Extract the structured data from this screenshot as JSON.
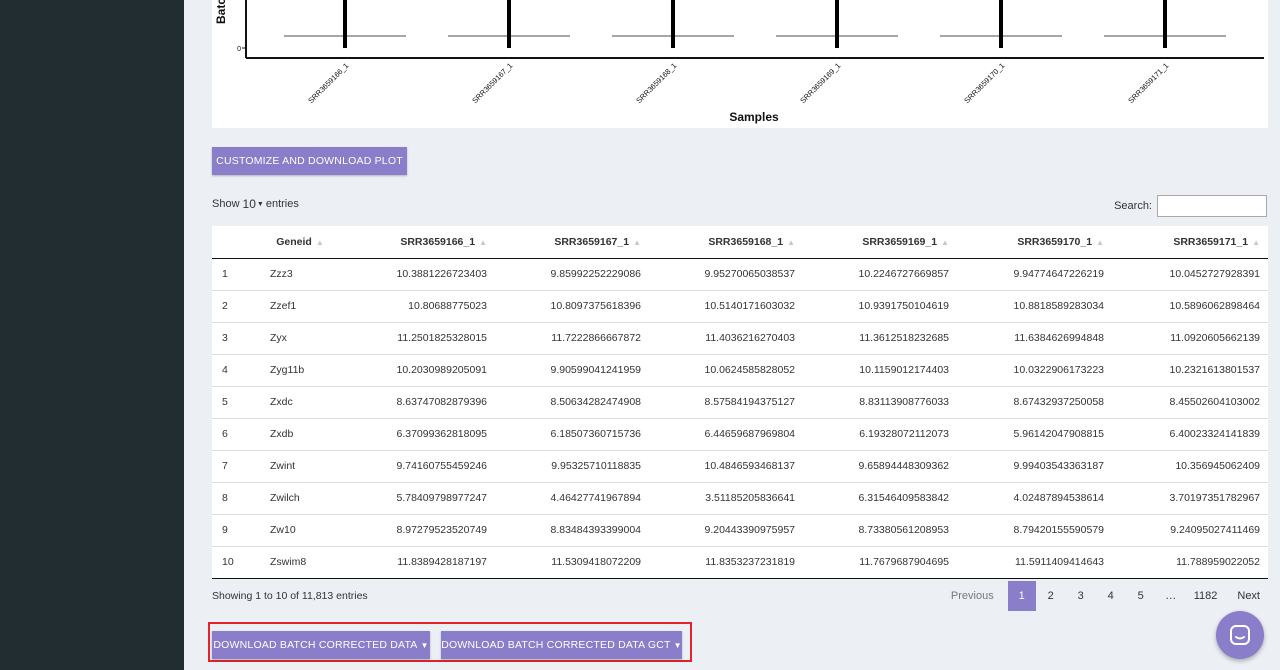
{
  "chart_data": {
    "type": "bar",
    "ylabel": "Batc",
    "xlabel": "Samples",
    "y_ticks": [
      "0"
    ],
    "categories": [
      "SRR3659166_1",
      "SRR3659167_1",
      "SRR3659168_1",
      "SRR3659169_1",
      "SRR3659170_1",
      "SRR3659171_1"
    ]
  },
  "customize_button": "CUSTOMIZE AND DOWNLOAD PLOT",
  "length_menu": {
    "show_label": "Show",
    "selected": "10",
    "entries_label": "entries"
  },
  "search": {
    "label": "Search:",
    "value": ""
  },
  "table": {
    "columns": [
      "",
      "Geneid",
      "SRR3659166_1",
      "SRR3659167_1",
      "SRR3659168_1",
      "SRR3659169_1",
      "SRR3659170_1",
      "SRR3659171_1"
    ],
    "rows": [
      [
        "1",
        "Zzz3",
        "10.3881226723403",
        "9.85992252229086",
        "9.95270065038537",
        "10.2246727669857",
        "9.94774647226219",
        "10.0452727928391"
      ],
      [
        "2",
        "Zzef1",
        "10.80688775023",
        "10.8097375618396",
        "10.5140171603032",
        "10.9391750104619",
        "10.8818589283034",
        "10.5896062898464"
      ],
      [
        "3",
        "Zyx",
        "11.2501825328015",
        "11.7222866667872",
        "11.4036216270403",
        "11.3612518232685",
        "11.6384626994848",
        "11.0920605662139"
      ],
      [
        "4",
        "Zyg11b",
        "10.2030989205091",
        "9.90599041241959",
        "10.0624585828052",
        "10.1159012174403",
        "10.0322906173223",
        "10.2321613801537"
      ],
      [
        "5",
        "Zxdc",
        "8.63747082879396",
        "8.50634282474908",
        "8.57584194375127",
        "8.83113908776033",
        "8.67432937250058",
        "8.45502604103002"
      ],
      [
        "6",
        "Zxdb",
        "6.37099362818095",
        "6.18507360715736",
        "6.44659687969804",
        "6.19328072112073",
        "5.96142047908815",
        "6.40023324141839"
      ],
      [
        "7",
        "Zwint",
        "9.74160755459246",
        "9.95325710118835",
        "10.4846593468137",
        "9.65894448309362",
        "9.99403543363187",
        "10.356945062409"
      ],
      [
        "8",
        "Zwilch",
        "5.78409798977247",
        "4.46427741967894",
        "3.51185205836641",
        "6.31546409583842",
        "4.02487894538614",
        "3.70197351782967"
      ],
      [
        "9",
        "Zw10",
        "8.97279523520749",
        "8.83484393399004",
        "9.20443390975957",
        "8.73380561208953",
        "8.79420155590579",
        "9.24095027411469"
      ],
      [
        "10",
        "Zswim8",
        "11.8389428187197",
        "11.5309418072209",
        "11.8353237231819",
        "11.7679687904695",
        "11.5911409414643",
        "11.788959022052"
      ]
    ]
  },
  "info": "Showing 1 to 10 of 11,813 entries",
  "pagination": {
    "previous": "Previous",
    "pages": [
      "1",
      "2",
      "3",
      "4",
      "5",
      "…",
      "1182"
    ],
    "next": "Next"
  },
  "download_buttons": [
    "DOWNLOAD BATCH CORRECTED DATA",
    "DOWNLOAD BATCH CORRECTED DATA GCT"
  ],
  "colors": {
    "accent": "#8a7dc9",
    "sidebar": "#222d32",
    "highlight": "#e3232c"
  },
  "icons": {
    "chat": "chat-bubble-icon",
    "caret": "caret-down-icon"
  }
}
